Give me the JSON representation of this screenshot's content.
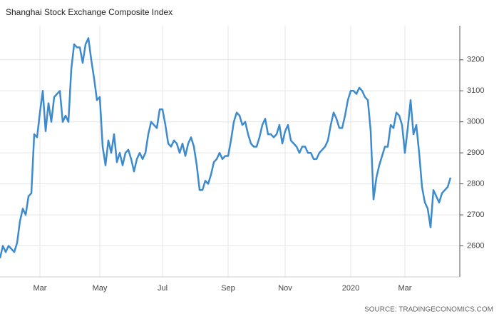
{
  "chart_data": {
    "type": "line",
    "title": "Shanghai Stock Exchange Composite Index",
    "source": "SOURCE: TRADINGECONOMICS.COM",
    "categories": [
      null,
      null,
      null,
      null,
      null,
      null,
      null,
      null,
      null,
      null,
      null,
      null,
      null,
      null,
      "Mar",
      null,
      null,
      null,
      null,
      null,
      null,
      null,
      null,
      null,
      null,
      null,
      null,
      null,
      null,
      null,
      null,
      null,
      null,
      null,
      null,
      "May",
      null,
      null,
      null,
      null,
      null,
      null,
      null,
      null,
      null,
      null,
      null,
      null,
      null,
      null,
      null,
      null,
      null,
      null,
      null,
      null,
      null,
      "Jul",
      null,
      null,
      null,
      null,
      null,
      null,
      null,
      null,
      null,
      null,
      null,
      null,
      null,
      null,
      null,
      null,
      null,
      null,
      null,
      null,
      null,
      null,
      "Sep",
      null,
      null,
      null,
      null,
      null,
      null,
      null,
      null,
      null,
      null,
      null,
      null,
      null,
      null,
      null,
      null,
      null,
      null,
      null,
      "Nov",
      null,
      null,
      null,
      null,
      null,
      null,
      null,
      null,
      null,
      null,
      null,
      null,
      null,
      null,
      null,
      null,
      null,
      null,
      null,
      null,
      null,
      null,
      "2020",
      null,
      null,
      null,
      null,
      null,
      null,
      null,
      null,
      null,
      null,
      null,
      null,
      null,
      null,
      null,
      null,
      null,
      null,
      "Mar",
      null,
      null,
      null,
      null,
      null,
      null,
      null,
      null,
      null,
      null,
      null,
      null,
      null,
      null,
      null,
      null
    ],
    "series": [
      {
        "name": "Shanghai Stock Exchange Composite Index",
        "color": "#3d8bcd",
        "values": [
          2560,
          2600,
          2580,
          2600,
          2590,
          2580,
          2610,
          2680,
          2720,
          2700,
          2760,
          2770,
          2960,
          2950,
          3030,
          3100,
          2970,
          3060,
          3000,
          3080,
          3090,
          3100,
          3000,
          3020,
          3000,
          3170,
          3250,
          3240,
          3240,
          3190,
          3250,
          3270,
          3200,
          3140,
          3070,
          3080,
          2920,
          2860,
          2940,
          2900,
          2960,
          2870,
          2900,
          2860,
          2900,
          2910,
          2880,
          2840,
          2880,
          2900,
          2880,
          2900,
          2960,
          3000,
          2990,
          2980,
          3040,
          3040,
          2990,
          2930,
          2920,
          2940,
          2930,
          2900,
          2930,
          2890,
          2930,
          2950,
          2920,
          2860,
          2780,
          2780,
          2810,
          2800,
          2830,
          2870,
          2880,
          2900,
          2880,
          2890,
          2890,
          2940,
          3000,
          3030,
          3020,
          2990,
          3000,
          2960,
          2930,
          2920,
          2920,
          2950,
          2990,
          3010,
          2960,
          2960,
          2950,
          2960,
          2990,
          2930,
          2970,
          2990,
          2940,
          2930,
          2920,
          2900,
          2920,
          2920,
          2900,
          2900,
          2880,
          2880,
          2900,
          2910,
          2920,
          2940,
          2990,
          3030,
          3010,
          2980,
          2980,
          3020,
          3070,
          3100,
          3100,
          3090,
          3110,
          3100,
          3080,
          3070,
          2970,
          2750,
          2820,
          2860,
          2890,
          2920,
          2920,
          2990,
          2980,
          3030,
          3020,
          2990,
          2900,
          2980,
          3070,
          2960,
          2990,
          2900,
          2790,
          2740,
          2720,
          2660,
          2780,
          2760,
          2740,
          2770,
          2780,
          2790,
          2820
        ]
      }
    ],
    "ylim": [
      2500,
      3310
    ],
    "yticks": [
      2600,
      2700,
      2800,
      2900,
      3000,
      3100,
      3200
    ],
    "grid": true
  }
}
